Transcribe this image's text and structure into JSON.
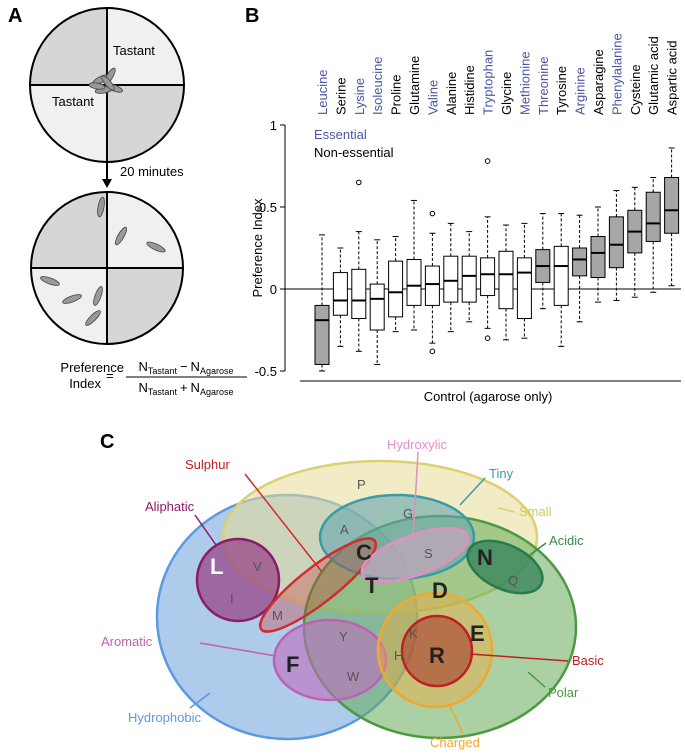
{
  "panel_labels": [
    "A",
    "B",
    "C"
  ],
  "panel_a": {
    "tastant_labels": [
      "Tastant",
      "Tastant"
    ],
    "arrow_label": "20 minutes",
    "formula": {
      "lhs": [
        "Preference",
        "Index"
      ],
      "equals": "=",
      "numerator": [
        "N",
        "Tastant",
        "−",
        "N",
        "Agarose"
      ],
      "denominator": [
        "N",
        "Tastant",
        "+",
        "N",
        "Agarose"
      ]
    }
  },
  "chart_data": {
    "type": "box",
    "ylabel": "Preference Index",
    "xlabel": "Control (agarose only)",
    "categories": [
      "Leucine",
      "Serine",
      "Lysine",
      "Isoleucine",
      "Proline",
      "Glutamine",
      "Valine",
      "Alanine",
      "Histidine",
      "Tryptophan",
      "Glycine",
      "Methionine",
      "Threonine",
      "Tyrosine",
      "Arginine",
      "Asparagine",
      "Phenylalanine",
      "Cysteine",
      "Glutamic acid",
      "Aspartic acid"
    ],
    "label_colors": [
      "#4b55a4",
      "#000000",
      "#4b55a4",
      "#4b55a4",
      "#000000",
      "#000000",
      "#4b55a4",
      "#000000",
      "#000000",
      "#4b55a4",
      "#000000",
      "#4b55a4",
      "#4b55a4",
      "#000000",
      "#4b55a4",
      "#000000",
      "#4b55a4",
      "#000000",
      "#000000",
      "#000000"
    ],
    "box_colors": [
      "#a6a6a6",
      "#ffffff",
      "#ffffff",
      "#ffffff",
      "#ffffff",
      "#ffffff",
      "#ffffff",
      "#ffffff",
      "#ffffff",
      "#ffffff",
      "#ffffff",
      "#ffffff",
      "#a6a6a6",
      "#ffffff",
      "#a6a6a6",
      "#a6a6a6",
      "#a6a6a6",
      "#a6a6a6",
      "#a6a6a6",
      "#a6a6a6"
    ],
    "whisker_low": [
      -0.5,
      -0.35,
      -0.38,
      -0.46,
      -0.26,
      -0.25,
      -0.33,
      -0.26,
      -0.2,
      -0.24,
      -0.31,
      -0.3,
      -0.12,
      -0.35,
      -0.2,
      -0.08,
      -0.07,
      -0.05,
      -0.02,
      0.02
    ],
    "q1": [
      -0.46,
      -0.16,
      -0.18,
      -0.25,
      -0.17,
      -0.1,
      -0.1,
      -0.08,
      -0.08,
      -0.04,
      -0.12,
      -0.18,
      0.04,
      -0.1,
      0.08,
      0.07,
      0.13,
      0.22,
      0.29,
      0.34
    ],
    "median": [
      -0.19,
      -0.07,
      -0.07,
      -0.06,
      -0.02,
      0.02,
      0.03,
      0.05,
      0.08,
      0.09,
      0.09,
      0.1,
      0.14,
      0.14,
      0.18,
      0.22,
      0.27,
      0.35,
      0.4,
      0.48
    ],
    "q3": [
      -0.1,
      0.1,
      0.12,
      0.03,
      0.17,
      0.18,
      0.14,
      0.2,
      0.2,
      0.19,
      0.23,
      0.19,
      0.24,
      0.26,
      0.25,
      0.32,
      0.44,
      0.48,
      0.59,
      0.68
    ],
    "whisker_high": [
      0.33,
      0.25,
      0.35,
      0.3,
      0.32,
      0.54,
      0.34,
      0.4,
      0.35,
      0.44,
      0.39,
      0.4,
      0.46,
      0.46,
      0.45,
      0.5,
      0.6,
      0.62,
      0.68,
      0.86
    ],
    "outliers": [
      [],
      [],
      [
        0.65
      ],
      [],
      [],
      [],
      [
        0.46,
        -0.38
      ],
      [],
      [],
      [
        0.78,
        -0.3
      ],
      [],
      [],
      [],
      [],
      [],
      [],
      [],
      [],
      [],
      []
    ],
    "legend": [
      {
        "name": "Essential",
        "color": "#4b55a4"
      },
      {
        "name": "Non-essential",
        "color": "#000000"
      }
    ],
    "reference_line": 0,
    "ylim": [
      -0.5,
      1
    ],
    "yticks": [
      -0.5,
      0,
      0.5,
      1
    ]
  },
  "panel_c": {
    "sets": [
      "Hydroxylic",
      "Sulphur",
      "Tiny",
      "Aliphatic",
      "Small",
      "Acidic",
      "Aromatic",
      "Basic",
      "Hydrophobic",
      "Polar",
      "Charged"
    ],
    "major_letters": [
      "L",
      "C",
      "T",
      "N",
      "D",
      "E",
      "R",
      "F"
    ],
    "minor_letters": [
      "P",
      "G",
      "A",
      "S",
      "V",
      "I",
      "M",
      "Q",
      "Y",
      "K",
      "H",
      "W"
    ]
  }
}
